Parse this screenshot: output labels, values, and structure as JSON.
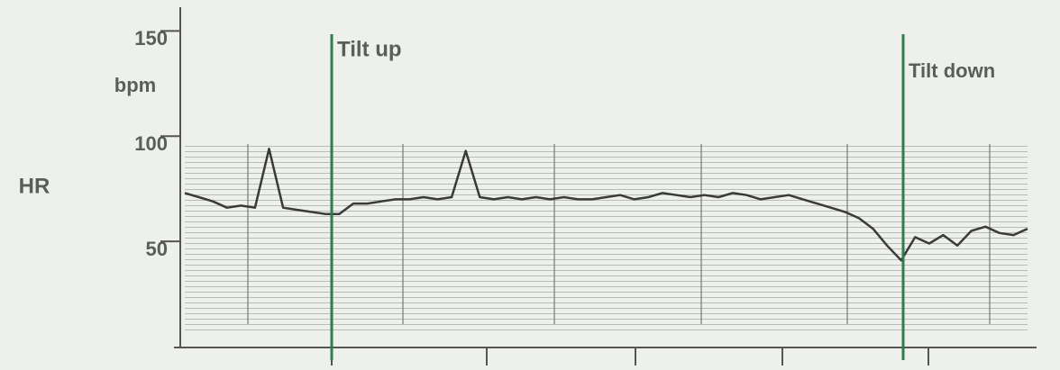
{
  "chart_data": {
    "type": "line",
    "ylabel": "HR",
    "y_unit": "bpm",
    "annotations": [
      "Tilt up",
      "Tilt down"
    ],
    "categories": [
      null,
      null,
      null,
      null,
      null,
      null,
      null,
      null,
      null,
      null,
      null,
      null,
      null,
      null,
      null,
      null,
      null,
      null,
      null,
      null,
      null,
      null,
      null,
      null,
      null,
      null,
      null,
      null,
      null,
      null,
      null,
      null,
      null,
      null,
      null,
      null,
      null,
      null,
      null,
      null,
      null,
      null,
      null,
      null,
      null,
      null,
      null,
      null,
      null,
      null,
      null,
      null,
      null,
      null,
      null,
      null,
      null,
      null,
      null,
      null,
      null
    ],
    "values": [
      73,
      71,
      69,
      66,
      67,
      66,
      94,
      66,
      65,
      64,
      63,
      63,
      68,
      68,
      69,
      70,
      70,
      71,
      70,
      71,
      93,
      71,
      70,
      71,
      70,
      71,
      70,
      71,
      70,
      70,
      71,
      72,
      70,
      71,
      73,
      72,
      71,
      72,
      71,
      73,
      72,
      70,
      71,
      72,
      70,
      68,
      66,
      64,
      61,
      56,
      48,
      41,
      52,
      49,
      53,
      48,
      55,
      57,
      54,
      53,
      56
    ],
    "color": "#3a3a3a",
    "annotation_color": "#2f7d4c",
    "ylim": [
      0,
      160
    ],
    "yticks": [
      50,
      100,
      150
    ],
    "grid": true
  }
}
